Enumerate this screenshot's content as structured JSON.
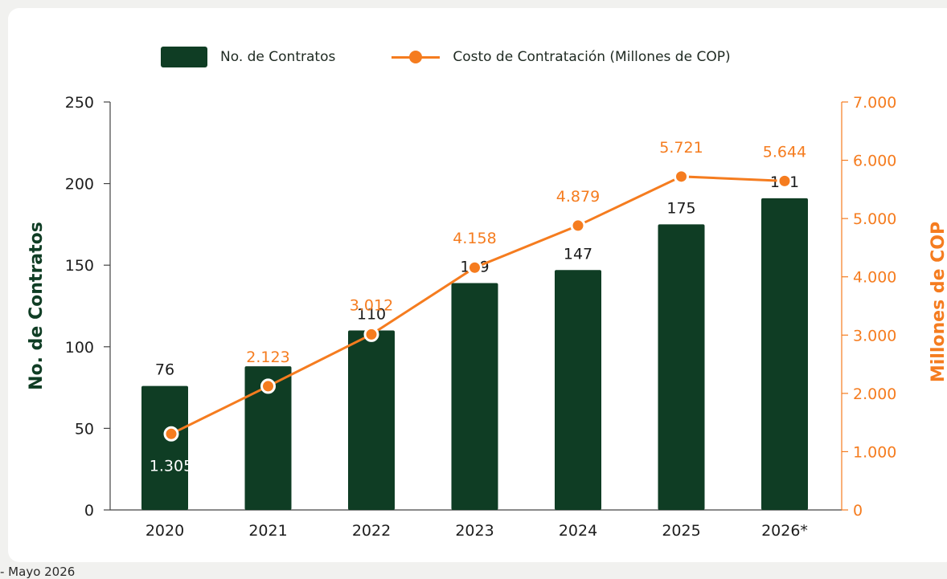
{
  "chart_data": {
    "type": "bar+line",
    "categories": [
      "2020",
      "2021",
      "2022",
      "2023",
      "2024",
      "2025",
      "2026*"
    ],
    "series": [
      {
        "name": "No. de Contratos",
        "type": "bar",
        "axis": "left",
        "values": [
          76,
          88,
          110,
          139,
          147,
          175,
          191
        ],
        "labels": [
          "76",
          "",
          "110",
          "139",
          "147",
          "175",
          "191"
        ],
        "color": "#0f3d24"
      },
      {
        "name": "Costo de Contratación (Millones de COP)",
        "type": "line",
        "axis": "right",
        "values": [
          1305,
          2123,
          3012,
          4158,
          4879,
          5721,
          5644
        ],
        "labels": [
          "1.305",
          "2.123",
          "3.012",
          "4.158",
          "4.879",
          "5.721",
          "5.644"
        ],
        "color": "#f57c1f"
      }
    ],
    "ylabel": "No. de Contratos",
    "ylabel_right": "Millones de COP",
    "ylim": [
      0,
      250
    ],
    "ylim_right": [
      0,
      7000
    ],
    "yticks": [
      "0",
      "50",
      "100",
      "150",
      "200",
      "250"
    ],
    "yticks_right": [
      "0",
      "1.000",
      "2.000",
      "3.000",
      "4.000",
      "5.000",
      "6.000",
      "7.000"
    ],
    "legend": "top-center",
    "grid": false
  },
  "footnote": "- Mayo 2026"
}
